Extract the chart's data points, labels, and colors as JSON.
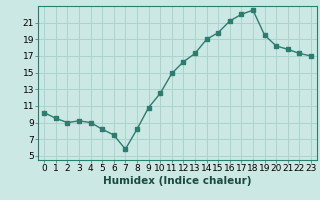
{
  "x": [
    0,
    1,
    2,
    3,
    4,
    5,
    6,
    7,
    8,
    9,
    10,
    11,
    12,
    13,
    14,
    15,
    16,
    17,
    18,
    19,
    20,
    21,
    22,
    23
  ],
  "y": [
    10.2,
    9.5,
    9.0,
    9.2,
    9.0,
    8.2,
    7.5,
    5.8,
    8.2,
    10.8,
    12.5,
    14.9,
    16.3,
    17.3,
    19.0,
    19.8,
    21.2,
    22.0,
    22.5,
    19.5,
    18.2,
    17.8,
    17.3,
    17.0
  ],
  "xlabel": "Humidex (Indice chaleur)",
  "line_color": "#2d7d6e",
  "marker": "s",
  "marker_size": 2.5,
  "bg_color": "#cce8e4",
  "grid_color": "#aad4cf",
  "ylim": [
    4.5,
    23.0
  ],
  "xlim": [
    -0.5,
    23.5
  ],
  "yticks": [
    5,
    7,
    9,
    11,
    13,
    15,
    17,
    19,
    21
  ],
  "xticks": [
    0,
    1,
    2,
    3,
    4,
    5,
    6,
    7,
    8,
    9,
    10,
    11,
    12,
    13,
    14,
    15,
    16,
    17,
    18,
    19,
    20,
    21,
    22,
    23
  ],
  "xlabel_fontsize": 7.5,
  "tick_fontsize": 6.5,
  "line_width": 1.0
}
